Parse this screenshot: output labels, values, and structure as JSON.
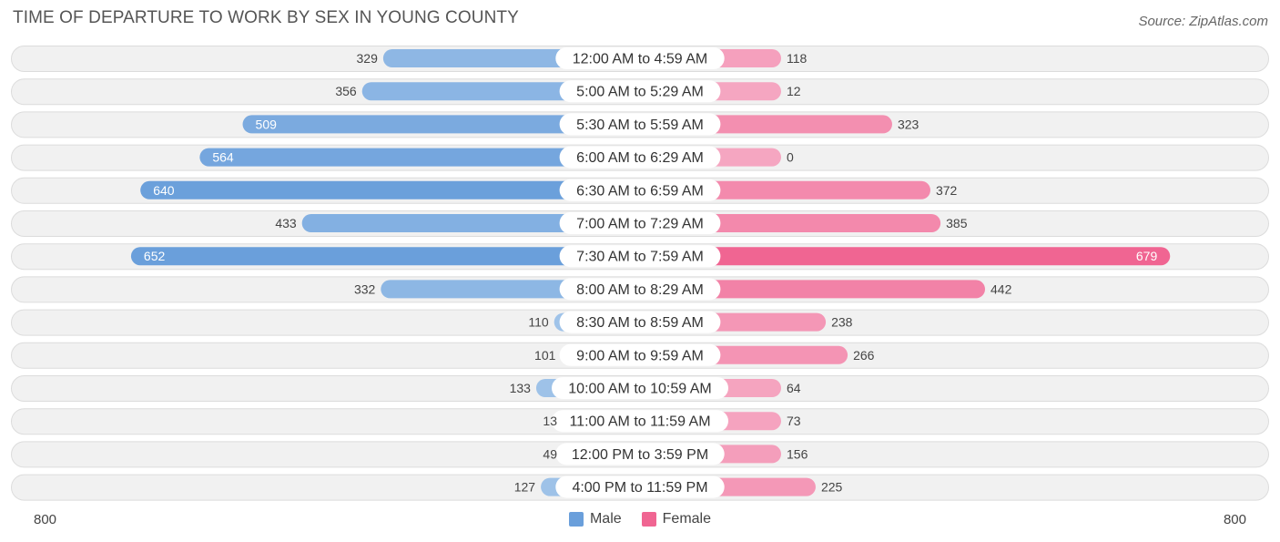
{
  "title": "TIME OF DEPARTURE TO WORK BY SEX IN YOUNG COUNTY",
  "source": "Source: ZipAtlas.com",
  "legend": {
    "male": "Male",
    "female": "Female"
  },
  "axis": {
    "left_label": "800",
    "right_label": "800"
  },
  "colors": {
    "male_light": "#a4c6ea",
    "male_dark": "#6a9fdb",
    "female_light": "#f5a6c1",
    "female_dark": "#f06592",
    "row_bg": "#f1f1f1",
    "row_border": "#dcdcdc"
  },
  "chart_data": {
    "type": "bar",
    "orientation": "horizontal-diverging",
    "title": "TIME OF DEPARTURE TO WORK BY SEX IN YOUNG COUNTY",
    "xlim": [
      -800,
      800
    ],
    "categories": [
      "12:00 AM to 4:59 AM",
      "5:00 AM to 5:29 AM",
      "5:30 AM to 5:59 AM",
      "6:00 AM to 6:29 AM",
      "6:30 AM to 6:59 AM",
      "7:00 AM to 7:29 AM",
      "7:30 AM to 7:59 AM",
      "8:00 AM to 8:29 AM",
      "8:30 AM to 8:59 AM",
      "9:00 AM to 9:59 AM",
      "10:00 AM to 10:59 AM",
      "11:00 AM to 11:59 AM",
      "12:00 PM to 3:59 PM",
      "4:00 PM to 11:59 PM"
    ],
    "series": [
      {
        "name": "Male",
        "values": [
          329,
          356,
          509,
          564,
          640,
          433,
          652,
          332,
          110,
          101,
          133,
          13,
          49,
          127
        ]
      },
      {
        "name": "Female",
        "values": [
          118,
          12,
          323,
          0,
          372,
          385,
          679,
          442,
          238,
          266,
          64,
          73,
          156,
          225
        ]
      }
    ],
    "legend_position": "bottom-center"
  }
}
